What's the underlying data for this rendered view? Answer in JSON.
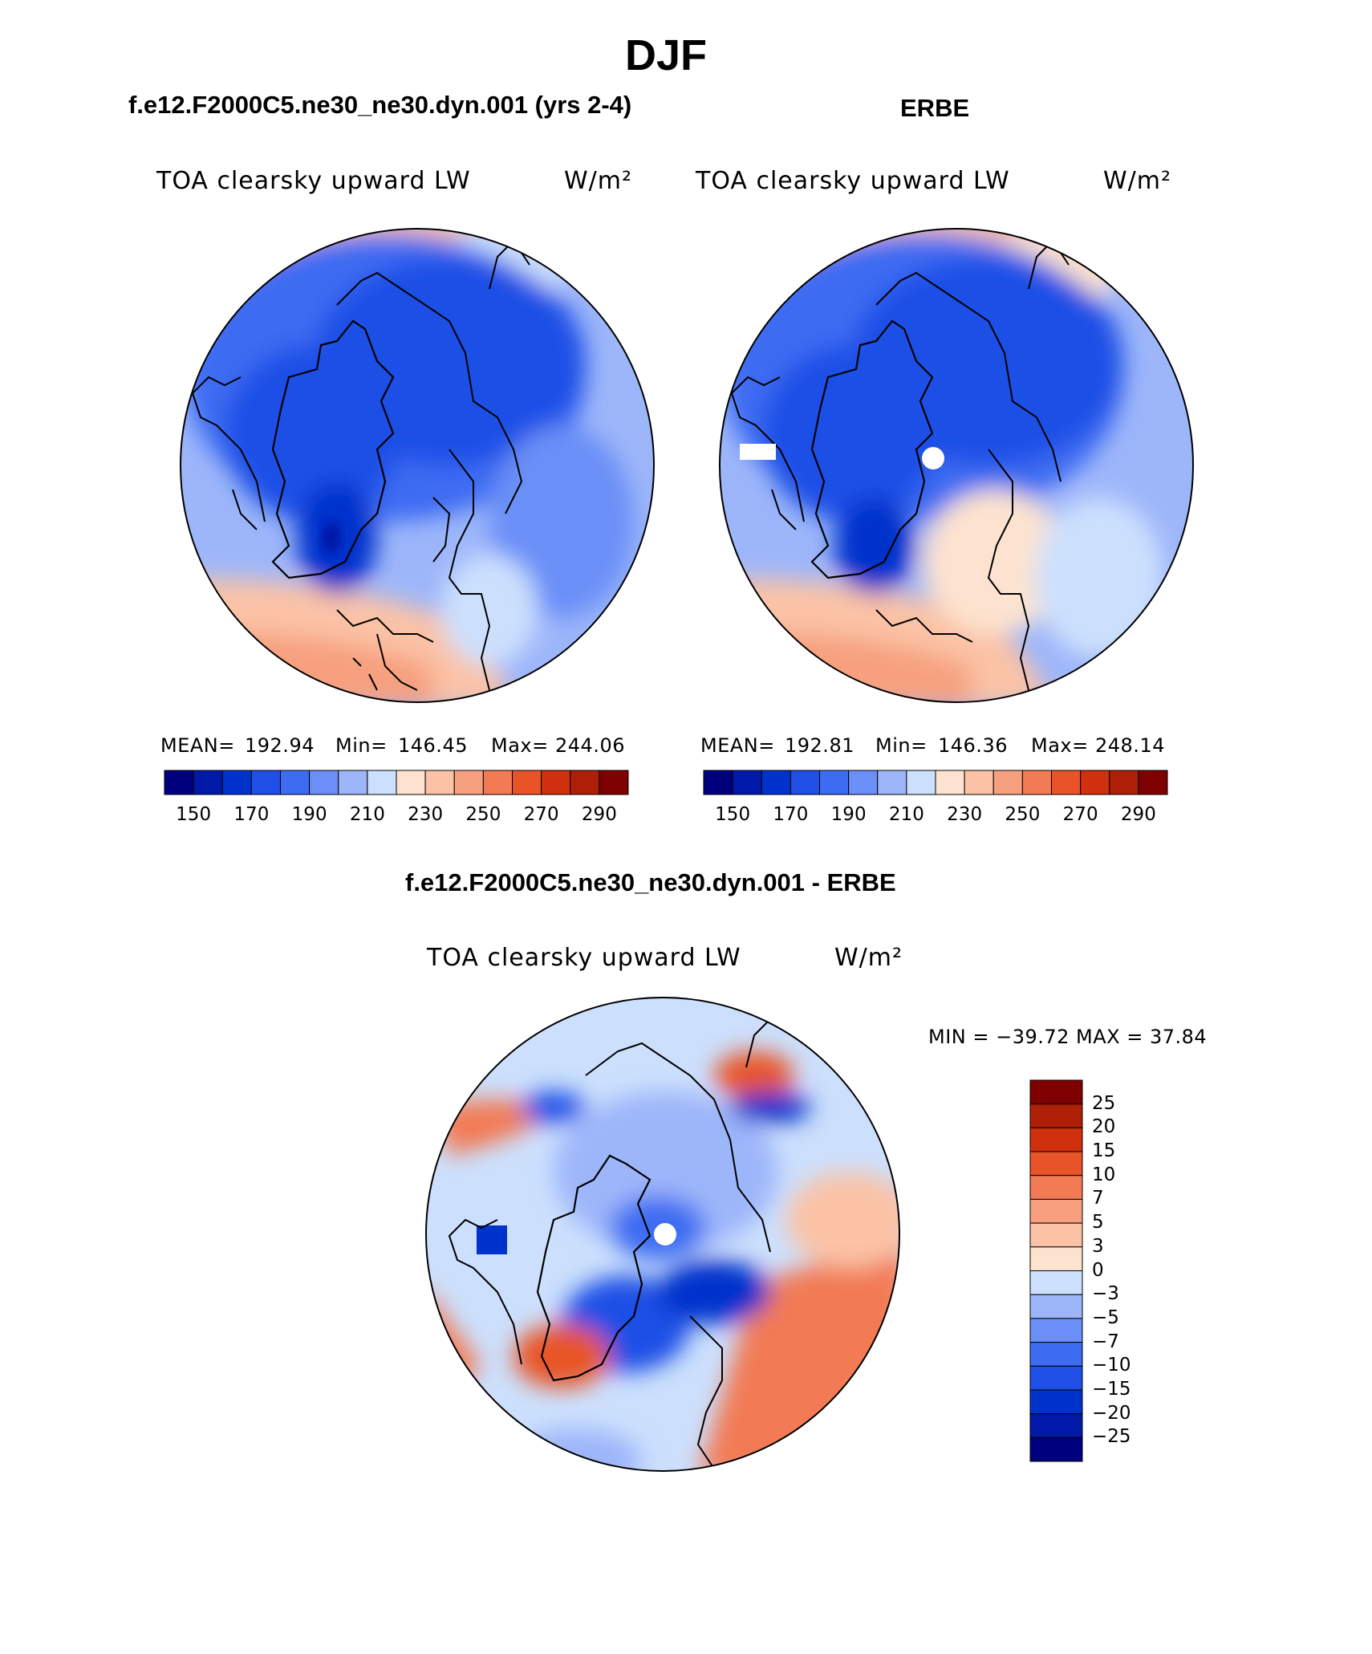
{
  "figure": {
    "title": "DJF"
  },
  "panels": [
    {
      "title": "f.e12.F2000C5.ne30_ne30.dyn.001 (yrs 2-4)",
      "variable": "TOA clearsky upward LW",
      "units": "W/m²",
      "stats": {
        "mean_label": "MEAN=",
        "mean": "192.94",
        "min_label": "Min=",
        "min": "146.45",
        "max_label": "Max=",
        "max": "244.06"
      }
    },
    {
      "title": "ERBE",
      "variable": "TOA clearsky upward LW",
      "units": "W/m²",
      "stats": {
        "mean_label": "MEAN=",
        "mean": "192.81",
        "min_label": "Min=",
        "min": "146.36",
        "max_label": "Max=",
        "max": "248.14"
      }
    },
    {
      "title": "f.e12.F2000C5.ne30_ne30.dyn.001 - ERBE",
      "variable": "TOA clearsky upward LW",
      "units": "W/m²",
      "stats_text": "MIN = −39.72 MAX =  37.84"
    }
  ],
  "colorbars": {
    "absolute": {
      "colors": [
        "#00007f",
        "#0019a8",
        "#0033cc",
        "#1f4fe6",
        "#3d6cf2",
        "#6b8ff7",
        "#9db6fa",
        "#cce0fd",
        "#fde3cf",
        "#fbc2a6",
        "#f7a07f",
        "#f27a55",
        "#e85428",
        "#d0300d",
        "#ad1f07",
        "#7f0000"
      ],
      "tick_labels": [
        "150",
        "170",
        "190",
        "210",
        "230",
        "250",
        "270",
        "290"
      ]
    },
    "difference": {
      "colors": [
        "#7f0000",
        "#ad1f07",
        "#d0300d",
        "#e85428",
        "#f27a55",
        "#f7a07f",
        "#fbc2a6",
        "#fde3cf",
        "#cce0fd",
        "#9db6fa",
        "#6b8ff7",
        "#3d6cf2",
        "#1f4fe6",
        "#0033cc",
        "#0019a8",
        "#00007f"
      ],
      "tick_labels": [
        "25",
        "20",
        "15",
        "10",
        "7",
        "5",
        "3",
        "0",
        "−3",
        "−5",
        "−7",
        "−10",
        "−15",
        "−20",
        "−25"
      ]
    }
  }
}
